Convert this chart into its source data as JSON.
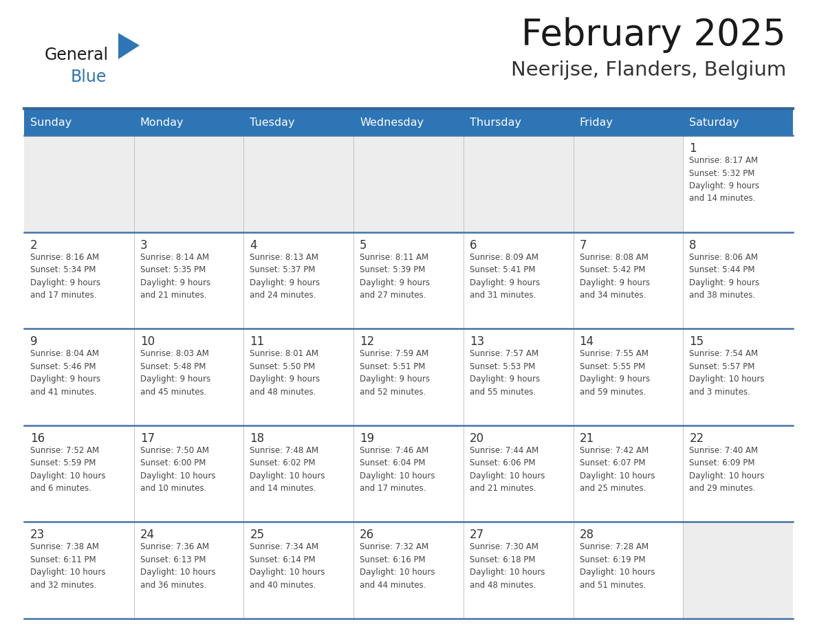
{
  "title": "February 2025",
  "subtitle": "Neerijse, Flanders, Belgium",
  "days_of_week": [
    "Sunday",
    "Monday",
    "Tuesday",
    "Wednesday",
    "Thursday",
    "Friday",
    "Saturday"
  ],
  "header_bg": "#2E75B6",
  "header_text_color": "#FFFFFF",
  "cell_bg_white": "#FFFFFF",
  "cell_bg_gray": "#EDEDED",
  "separator_color": "#336699",
  "row_sep_color": "#4472A8",
  "text_color": "#444444",
  "day_number_color": "#333333",
  "title_color": "#1a1a1a",
  "subtitle_color": "#333333",
  "logo_general_color": "#1a1a1a",
  "logo_blue_color": "#2E75B6",
  "weeks": [
    [
      {
        "day": null,
        "info": null
      },
      {
        "day": null,
        "info": null
      },
      {
        "day": null,
        "info": null
      },
      {
        "day": null,
        "info": null
      },
      {
        "day": null,
        "info": null
      },
      {
        "day": null,
        "info": null
      },
      {
        "day": 1,
        "info": "Sunrise: 8:17 AM\nSunset: 5:32 PM\nDaylight: 9 hours\nand 14 minutes."
      }
    ],
    [
      {
        "day": 2,
        "info": "Sunrise: 8:16 AM\nSunset: 5:34 PM\nDaylight: 9 hours\nand 17 minutes."
      },
      {
        "day": 3,
        "info": "Sunrise: 8:14 AM\nSunset: 5:35 PM\nDaylight: 9 hours\nand 21 minutes."
      },
      {
        "day": 4,
        "info": "Sunrise: 8:13 AM\nSunset: 5:37 PM\nDaylight: 9 hours\nand 24 minutes."
      },
      {
        "day": 5,
        "info": "Sunrise: 8:11 AM\nSunset: 5:39 PM\nDaylight: 9 hours\nand 27 minutes."
      },
      {
        "day": 6,
        "info": "Sunrise: 8:09 AM\nSunset: 5:41 PM\nDaylight: 9 hours\nand 31 minutes."
      },
      {
        "day": 7,
        "info": "Sunrise: 8:08 AM\nSunset: 5:42 PM\nDaylight: 9 hours\nand 34 minutes."
      },
      {
        "day": 8,
        "info": "Sunrise: 8:06 AM\nSunset: 5:44 PM\nDaylight: 9 hours\nand 38 minutes."
      }
    ],
    [
      {
        "day": 9,
        "info": "Sunrise: 8:04 AM\nSunset: 5:46 PM\nDaylight: 9 hours\nand 41 minutes."
      },
      {
        "day": 10,
        "info": "Sunrise: 8:03 AM\nSunset: 5:48 PM\nDaylight: 9 hours\nand 45 minutes."
      },
      {
        "day": 11,
        "info": "Sunrise: 8:01 AM\nSunset: 5:50 PM\nDaylight: 9 hours\nand 48 minutes."
      },
      {
        "day": 12,
        "info": "Sunrise: 7:59 AM\nSunset: 5:51 PM\nDaylight: 9 hours\nand 52 minutes."
      },
      {
        "day": 13,
        "info": "Sunrise: 7:57 AM\nSunset: 5:53 PM\nDaylight: 9 hours\nand 55 minutes."
      },
      {
        "day": 14,
        "info": "Sunrise: 7:55 AM\nSunset: 5:55 PM\nDaylight: 9 hours\nand 59 minutes."
      },
      {
        "day": 15,
        "info": "Sunrise: 7:54 AM\nSunset: 5:57 PM\nDaylight: 10 hours\nand 3 minutes."
      }
    ],
    [
      {
        "day": 16,
        "info": "Sunrise: 7:52 AM\nSunset: 5:59 PM\nDaylight: 10 hours\nand 6 minutes."
      },
      {
        "day": 17,
        "info": "Sunrise: 7:50 AM\nSunset: 6:00 PM\nDaylight: 10 hours\nand 10 minutes."
      },
      {
        "day": 18,
        "info": "Sunrise: 7:48 AM\nSunset: 6:02 PM\nDaylight: 10 hours\nand 14 minutes."
      },
      {
        "day": 19,
        "info": "Sunrise: 7:46 AM\nSunset: 6:04 PM\nDaylight: 10 hours\nand 17 minutes."
      },
      {
        "day": 20,
        "info": "Sunrise: 7:44 AM\nSunset: 6:06 PM\nDaylight: 10 hours\nand 21 minutes."
      },
      {
        "day": 21,
        "info": "Sunrise: 7:42 AM\nSunset: 6:07 PM\nDaylight: 10 hours\nand 25 minutes."
      },
      {
        "day": 22,
        "info": "Sunrise: 7:40 AM\nSunset: 6:09 PM\nDaylight: 10 hours\nand 29 minutes."
      }
    ],
    [
      {
        "day": 23,
        "info": "Sunrise: 7:38 AM\nSunset: 6:11 PM\nDaylight: 10 hours\nand 32 minutes."
      },
      {
        "day": 24,
        "info": "Sunrise: 7:36 AM\nSunset: 6:13 PM\nDaylight: 10 hours\nand 36 minutes."
      },
      {
        "day": 25,
        "info": "Sunrise: 7:34 AM\nSunset: 6:14 PM\nDaylight: 10 hours\nand 40 minutes."
      },
      {
        "day": 26,
        "info": "Sunrise: 7:32 AM\nSunset: 6:16 PM\nDaylight: 10 hours\nand 44 minutes."
      },
      {
        "day": 27,
        "info": "Sunrise: 7:30 AM\nSunset: 6:18 PM\nDaylight: 10 hours\nand 48 minutes."
      },
      {
        "day": 28,
        "info": "Sunrise: 7:28 AM\nSunset: 6:19 PM\nDaylight: 10 hours\nand 51 minutes."
      },
      {
        "day": null,
        "info": null
      }
    ]
  ],
  "figsize": [
    11.88,
    9.18
  ],
  "dpi": 100
}
